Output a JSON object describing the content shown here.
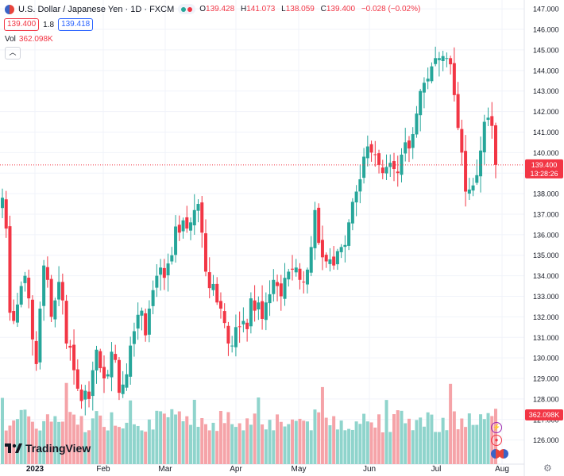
{
  "header": {
    "symbol_title": "U.S. Dollar / Japanese Yen · 1D · FXCM",
    "ohlc": [
      {
        "key": "O",
        "value": "139.428"
      },
      {
        "key": "H",
        "value": "141.073"
      },
      {
        "key": "L",
        "value": "138.059"
      },
      {
        "key": "C",
        "value": "139.400"
      },
      {
        "key": "",
        "value": "−0.028 (−0.02%)"
      }
    ],
    "sell_price": "139.400",
    "spread": "1.8",
    "buy_price": "139.418",
    "volume_label": "Vol",
    "volume_value": "362.098K",
    "collapse_icon": "chevron-up-icon"
  },
  "price_badge": {
    "price": "139.400",
    "countdown": "13:28:26"
  },
  "volume_badge": "362.098K",
  "logo_text": "TradingView",
  "colors": {
    "up": "#26a69a",
    "down": "#f23645",
    "up_vol": "#8fd4cc",
    "down_vol": "#f5a3a8",
    "grid": "#f0f3fa"
  },
  "chart_data": {
    "type": "candlestick",
    "symbol": "U.S. Dollar / Japanese Yen",
    "interval": "1D",
    "source": "FXCM",
    "y_ticks": [
      "147.000",
      "146.000",
      "145.000",
      "144.000",
      "143.000",
      "142.000",
      "141.000",
      "140.000",
      "139.000",
      "138.000",
      "137.000",
      "136.000",
      "135.000",
      "134.000",
      "133.000",
      "132.000",
      "131.000",
      "130.000",
      "129.000",
      "128.000",
      "127.000",
      "126.000"
    ],
    "ylim": [
      125.6,
      147.2
    ],
    "x_labels": [
      "2023",
      "Feb",
      "Mar",
      "Apr",
      "May",
      "Jun",
      "Jul",
      "Aug"
    ],
    "last_price": 139.4,
    "volume_last": "362.098K",
    "closes": [
      137.8,
      136.3,
      132.2,
      131.8,
      132.6,
      133.5,
      134.0,
      132.9,
      130.9,
      129.7,
      132.4,
      134.5,
      133.8,
      132.0,
      132.8,
      133.7,
      132.8,
      130.7,
      130.5,
      129.4,
      128.5,
      127.9,
      128.4,
      128.0,
      129.4,
      130.4,
      129.5,
      129.0,
      129.2,
      130.3,
      129.9,
      128.3,
      128.7,
      129.2,
      130.6,
      131.3,
      132.1,
      132.3,
      131.1,
      132.4,
      133.3,
      134.0,
      134.4,
      133.9,
      134.6,
      135.0,
      136.4,
      136.1,
      136.7,
      136.3,
      136.6,
      137.2,
      137.5,
      136.1,
      134.2,
      133.4,
      133.6,
      132.7,
      132.4,
      131.7,
      130.7,
      130.6,
      131.5,
      131.5,
      131.8,
      131.4,
      132.9,
      132.3,
      132.7,
      131.9,
      132.7,
      133.1,
      133.8,
      133.5,
      133.0,
      133.9,
      134.2,
      134.3,
      134.4,
      133.8,
      133.7,
      134.3,
      135.4,
      137.2,
      135.6,
      134.9,
      134.7,
      134.8,
      134.5,
      135.2,
      135.4,
      135.5,
      136.6,
      137.6,
      138.1,
      138.7,
      139.8,
      140.3,
      140.0,
      139.9,
      139.4,
      139.0,
      139.3,
      139.5,
      139.2,
      139.0,
      139.9,
      140.5,
      140.2,
      140.9,
      141.9,
      143.0,
      143.4,
      143.6,
      144.2,
      144.6,
      144.6,
      144.7,
      144.6,
      144.3,
      142.8,
      141.2,
      140.0,
      138.1,
      138.2,
      138.4,
      138.9,
      140.1,
      141.5,
      141.7,
      141.3,
      139.4
    ]
  }
}
